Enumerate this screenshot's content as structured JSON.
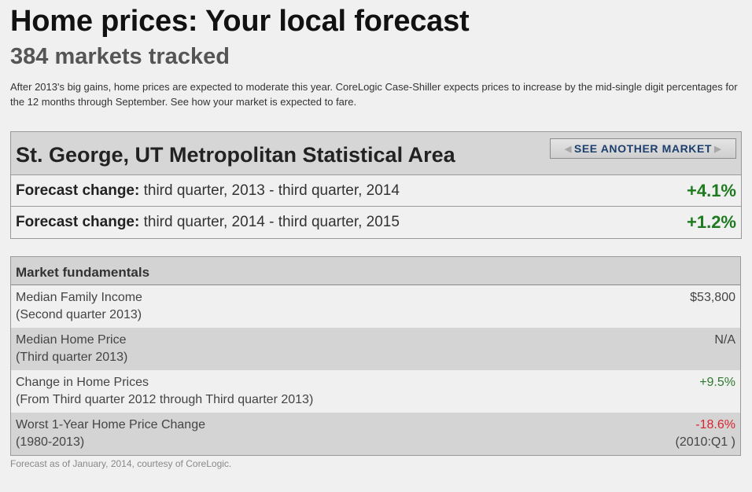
{
  "header": {
    "title": "Home prices: Your local forecast",
    "subtitle": "384 markets tracked",
    "intro": "After 2013's big gains, home prices are expected to moderate this year. CoreLogic Case-Shiller expects prices to increase by the mid-single digit percentages for the 12 months through September. See how your market is expected to fare."
  },
  "market": {
    "name": "St. George, UT Metropolitan Statistical Area",
    "see_another_label": "SEE ANOTHER MARKET",
    "forecasts": [
      {
        "label": "Forecast change:",
        "period": " third quarter, 2013 - third quarter, 2014",
        "value": "+4.1%"
      },
      {
        "label": "Forecast change:",
        "period": " third quarter, 2014 - third quarter, 2015",
        "value": "+1.2%"
      }
    ]
  },
  "fundamentals": {
    "title": "Market fundamentals",
    "rows": [
      {
        "label": "Median Family Income",
        "sub": "(Second quarter 2013)",
        "value": "$53,800",
        "value_sub": ""
      },
      {
        "label": "Median Home Price",
        "sub": "(Third quarter 2013)",
        "value": "N/A",
        "value_sub": ""
      },
      {
        "label": "Change in Home Prices",
        "sub": "(From Third quarter 2012 through Third quarter 2013)",
        "value": "+9.5%",
        "value_sub": ""
      },
      {
        "label": "Worst 1-Year Home Price Change",
        "sub": "(1980-2013)",
        "value": "-18.6%",
        "value_sub": "(2010:Q1 )"
      }
    ]
  },
  "footnote": "Forecast as of January, 2014, courtesy of CoreLogic.",
  "colors": {
    "positive": "#1e7a1e",
    "negative": "#d9242e",
    "button_text": "#1d3f6e"
  }
}
